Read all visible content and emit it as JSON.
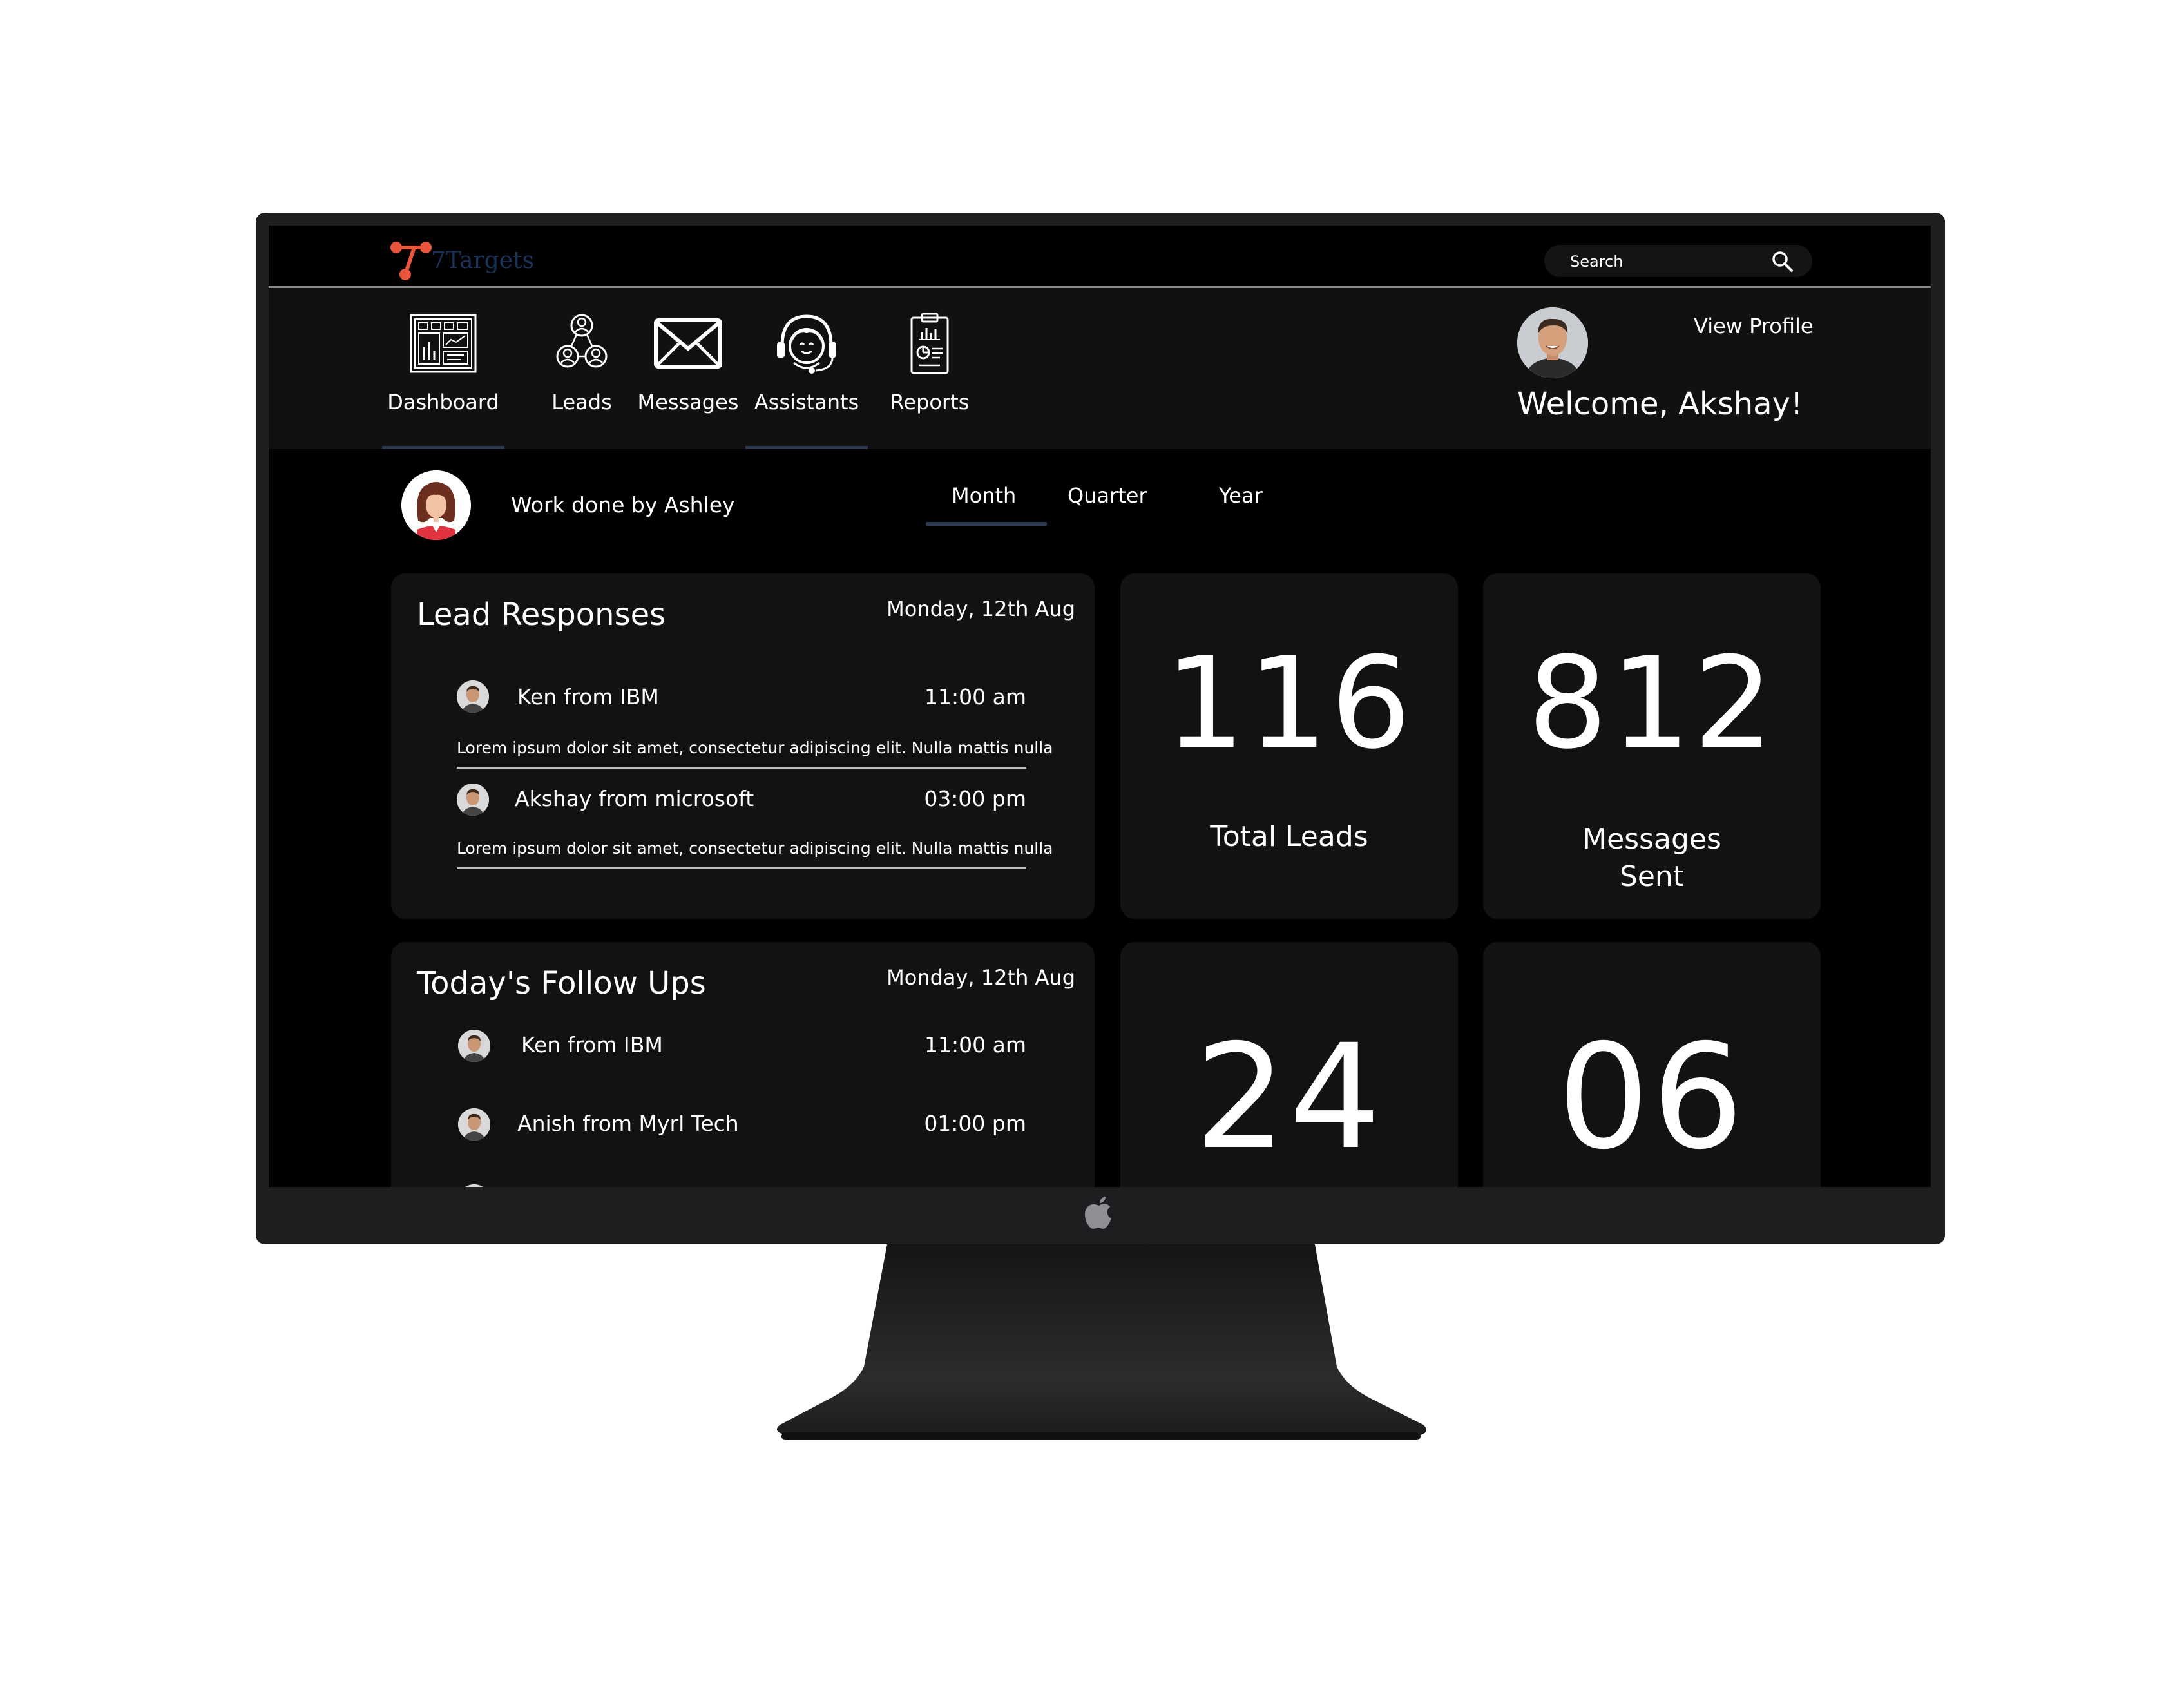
{
  "brand": {
    "name": "7Targets"
  },
  "search": {
    "placeholder": "Search"
  },
  "nav": [
    {
      "label": "Dashboard",
      "icon": "dashboard-icon"
    },
    {
      "label": "Leads",
      "icon": "leads-icon"
    },
    {
      "label": "Messages",
      "icon": "envelope-icon"
    },
    {
      "label": "Assistants",
      "icon": "headset-icon"
    },
    {
      "label": "Reports",
      "icon": "clipboard-chart-icon"
    }
  ],
  "profile": {
    "view_label": "View Profile",
    "welcome": "Welcome, Akshay!"
  },
  "work": {
    "label": "Work done by Ashley"
  },
  "periods": [
    "Month",
    "Quarter",
    "Year"
  ],
  "lead_responses": {
    "title": "Lead Responses",
    "date": "Monday, 12th Aug",
    "items": [
      {
        "name": "Ken from IBM",
        "time": "11:00 am",
        "desc": "Lorem ipsum dolor sit amet, consectetur adipiscing elit. Nulla mattis nulla"
      },
      {
        "name": "Akshay from microsoft",
        "time": "03:00 pm",
        "desc": "Lorem ipsum dolor sit amet, consectetur adipiscing elit. Nulla mattis nulla"
      }
    ]
  },
  "follow_ups": {
    "title": "Today's Follow Ups",
    "date": "Monday, 12th Aug",
    "items": [
      {
        "name": "Ken from IBM",
        "time": "11:00 am"
      },
      {
        "name": "Anish from Myrl Tech",
        "time": "01:00 pm"
      }
    ]
  },
  "stats": [
    {
      "value": "116",
      "label": "Total Leads"
    },
    {
      "value": "812",
      "label": "Messages Sent"
    },
    {
      "value": "24",
      "label": ""
    },
    {
      "value": "06",
      "label": ""
    }
  ],
  "colors": {
    "accent_logo": "#e8553a",
    "underline": "#2d3a50",
    "card": "#121213"
  }
}
